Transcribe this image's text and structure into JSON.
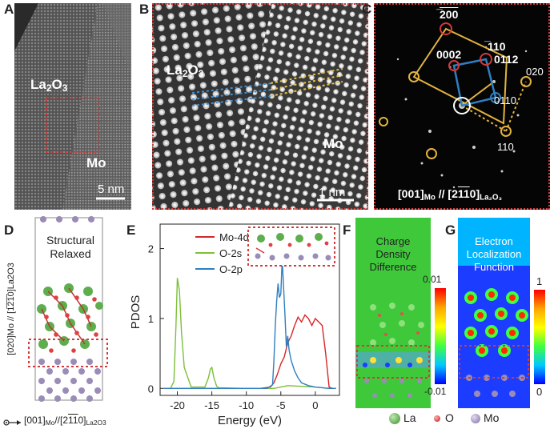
{
  "panel_labels": [
    "A",
    "B",
    "C",
    "D",
    "E",
    "F",
    "G"
  ],
  "panel_a": {
    "material_top": "La",
    "material_top_sub1": "2",
    "material_top_mid": "O",
    "material_top_sub2": "3",
    "material_bottom": "Mo",
    "scale_bar": "5 nm"
  },
  "panel_b": {
    "material_top": "La",
    "material_top_sub1": "2",
    "material_top_mid": "O",
    "material_top_sub2": "3",
    "material_bottom": "Mo",
    "scale_bar": "1 nm"
  },
  "panel_c": {
    "spots": [
      "200",
      "0002",
      "110",
      "0112",
      "020",
      "0110",
      "110"
    ],
    "spot_labels": {
      "s200": "̅200",
      "s0002": "0002",
      "s110top": "̅110",
      "s0112": "0112",
      "s020": "020",
      "s0110": "0110",
      "s110": "110"
    },
    "zone_axis_left": "[001]",
    "zone_axis_left_sub": "Mo",
    "zone_axis_sep": " // [2",
    "zone_axis_right_tail": "0]",
    "zone_axis_right_sub": "La₂O₃"
  },
  "panel_d": {
    "title_line1": "Structural",
    "title_line2": "Relaxed",
    "y_axis_label": "[020]Mo // [1̅2̅1̅0]La2O3",
    "x_axis_label": "[001]",
    "x_axis_label_sub": "Mo",
    "x_axis_label_mid": "//[2",
    "x_axis_label_tail": "0]",
    "x_axis_label_sub2": "La2O3"
  },
  "panel_e": {
    "ylabel": "PDOS",
    "xlabel": "Energy (eV)",
    "legend": [
      "Mo-4d",
      "O-2s",
      "O-2p"
    ]
  },
  "panel_f": {
    "title_line1": "Charge",
    "title_line2": "Density",
    "title_line3": "Difference",
    "colorbar_max": "0.01",
    "colorbar_min": "-0.01"
  },
  "panel_g": {
    "title_line1": "Electron",
    "title_line2": "Localization",
    "title_line3": "Function",
    "colorbar_max": "1",
    "colorbar_min": "0"
  },
  "bottom_legend": [
    "La",
    "O",
    "Mo"
  ],
  "colors": {
    "mo4d": "#d62728",
    "o2s": "#7cbf3a",
    "o2p": "#2f7fc1",
    "dotted_box": "#d33a3a",
    "la_atom": "#5fae4e",
    "o_atom": "#e04040",
    "mo_atom": "#9a8cb6"
  },
  "chart_data": {
    "type": "line",
    "title": "",
    "xlabel": "Energy (eV)",
    "ylabel": "PDOS",
    "xlim": [
      -22.5,
      3.5
    ],
    "ylim": [
      -0.1,
      2.35
    ],
    "xticks": [
      -20,
      -15,
      -10,
      -5,
      0
    ],
    "yticks": [
      0,
      1,
      2
    ],
    "grid": false,
    "legend_position": "top-center",
    "series": [
      {
        "name": "Mo-4d",
        "color": "#d62728",
        "x": [
          -22,
          -8,
          -6.5,
          -6,
          -5.5,
          -5,
          -4.5,
          -4,
          -3.5,
          -3,
          -2.5,
          -2,
          -1.5,
          -1,
          -0.5,
          0,
          0.5,
          1,
          1.5,
          2,
          2.5,
          3
        ],
        "y": [
          0,
          0,
          0.02,
          0.08,
          0.2,
          0.35,
          0.45,
          0.65,
          0.75,
          0.9,
          1.02,
          0.95,
          1.05,
          1.0,
          0.9,
          1.0,
          0.95,
          0.9,
          0.5,
          0.02,
          0,
          0
        ]
      },
      {
        "name": "O-2s",
        "color": "#7cbf3a",
        "x": [
          -22,
          -21,
          -20.5,
          -20.2,
          -20,
          -19.7,
          -19.4,
          -19,
          -18,
          -16,
          -15.5,
          -15.2,
          -15,
          -14.7,
          -14.3,
          -14,
          -10,
          -6,
          -5,
          -4,
          -2,
          0,
          2,
          3
        ],
        "y": [
          0,
          0,
          0.1,
          0.9,
          1.58,
          1.4,
          0.8,
          0.3,
          0.02,
          0.02,
          0.15,
          0.28,
          0.3,
          0.15,
          0.03,
          0.01,
          0,
          0,
          0.02,
          0.04,
          0.03,
          0.02,
          0,
          0
        ]
      },
      {
        "name": "O-2p",
        "color": "#2f7fc1",
        "x": [
          -22,
          -7,
          -6.2,
          -6,
          -5.8,
          -5.6,
          -5.4,
          -5.2,
          -5.0,
          -4.8,
          -4.6,
          -4.4,
          -4.2,
          -4.0,
          -3.8,
          -3.5,
          -3,
          -2.5,
          -2,
          -1,
          0,
          1,
          2,
          3
        ],
        "y": [
          0,
          0,
          0.05,
          0.4,
          0.9,
          1.25,
          1.5,
          1.3,
          1.35,
          1.85,
          1.45,
          1.05,
          0.6,
          0.75,
          0.55,
          0.4,
          0.25,
          0.15,
          0.08,
          0.04,
          0.02,
          0.01,
          0,
          0
        ]
      }
    ]
  }
}
